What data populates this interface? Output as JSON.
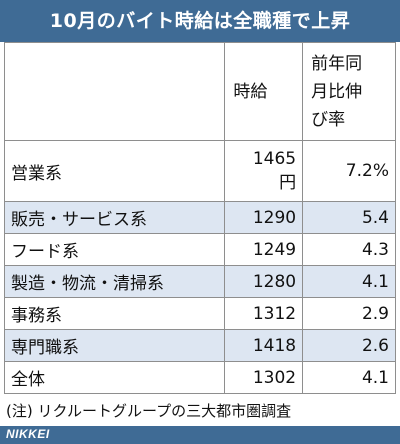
{
  "title": "10月のバイト時給は全職種で上昇",
  "table": {
    "headers": {
      "name": "",
      "wage_line1": "時給",
      "ratio_line1": "前年同",
      "ratio_line2": "月比伸",
      "ratio_line3": "び率"
    },
    "rows": [
      {
        "name": "営業系",
        "wage": "1465",
        "wage_unit": "円",
        "ratio": "7.2%"
      },
      {
        "name": "販売・サービス系",
        "wage": "1290",
        "ratio": "5.4"
      },
      {
        "name": "フード系",
        "wage": "1249",
        "ratio": "4.3"
      },
      {
        "name": "製造・物流・清掃系",
        "wage": "1280",
        "ratio": "4.1"
      },
      {
        "name": "事務系",
        "wage": "1312",
        "ratio": "2.9"
      },
      {
        "name": "専門職系",
        "wage": "1418",
        "ratio": "2.6"
      },
      {
        "name": "全体",
        "wage": "1302",
        "ratio": "4.1"
      }
    ]
  },
  "footnote": "(注) リクルートグループの三大都市圏調査",
  "source_logo": "NIKKEI",
  "colors": {
    "header_bg": "#3f6b95",
    "alt_row_bg": "#dde6f2"
  }
}
